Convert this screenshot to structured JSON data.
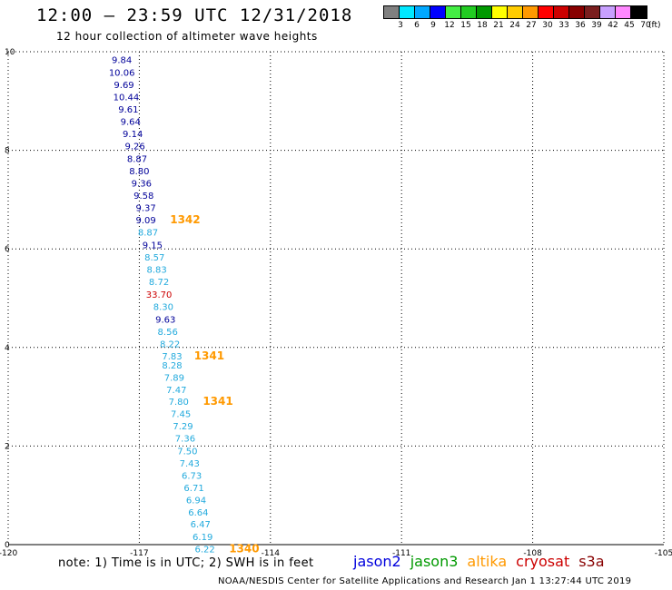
{
  "header": {
    "title": "12:00 – 23:59 UTC 12/31/2018",
    "subtitle": "12 hour collection of altimeter wave heights"
  },
  "colorbar": {
    "colors": [
      "#808080",
      "#00e8ff",
      "#00a8ff",
      "#0000ff",
      "#44ee44",
      "#22cc22",
      "#009900",
      "#ffff00",
      "#ffcc00",
      "#ff9900",
      "#ff0000",
      "#cc0000",
      "#880000",
      "#7a1e1e",
      "#c8a0ff",
      "#ff88ff",
      "#000000"
    ],
    "labels": [
      "3",
      "6",
      "9",
      "12",
      "15",
      "18",
      "21",
      "24",
      "27",
      "30",
      "33",
      "36",
      "39",
      "42",
      "45",
      "70"
    ],
    "unit": "(ft)"
  },
  "chart_data": {
    "type": "scatter",
    "xlim": [
      -120,
      -105
    ],
    "ylim": [
      0,
      10
    ],
    "x_ticks": [
      "-120",
      "-117",
      "-114",
      "-111",
      "-108",
      "-105"
    ],
    "y_ticks": [
      "0",
      "2",
      "4",
      "6",
      "8",
      "10"
    ],
    "grid": true,
    "labels": [
      {
        "x": -117.4,
        "y": 9.84,
        "text": "9.84",
        "color": "#000099"
      },
      {
        "x": -117.4,
        "y": 9.59,
        "text": "10.06",
        "color": "#000099"
      },
      {
        "x": -117.35,
        "y": 9.34,
        "text": "9.69",
        "color": "#000099"
      },
      {
        "x": -117.3,
        "y": 9.09,
        "text": "10.44",
        "color": "#000099"
      },
      {
        "x": -117.25,
        "y": 8.84,
        "text": "9.61",
        "color": "#000099"
      },
      {
        "x": -117.2,
        "y": 8.59,
        "text": "9.64",
        "color": "#000099"
      },
      {
        "x": -117.15,
        "y": 8.34,
        "text": "9.14",
        "color": "#000099"
      },
      {
        "x": -117.1,
        "y": 8.09,
        "text": "9.26",
        "color": "#000099"
      },
      {
        "x": -117.05,
        "y": 7.84,
        "text": "8.87",
        "color": "#000099"
      },
      {
        "x": -117.0,
        "y": 7.59,
        "text": "8.80",
        "color": "#000099"
      },
      {
        "x": -116.95,
        "y": 7.34,
        "text": "9.36",
        "color": "#000099"
      },
      {
        "x": -116.9,
        "y": 7.09,
        "text": "9.58",
        "color": "#000099"
      },
      {
        "x": -116.85,
        "y": 6.84,
        "text": "9.37",
        "color": "#000099"
      },
      {
        "x": -116.85,
        "y": 6.59,
        "text": "9.09",
        "color": "#000099"
      },
      {
        "x": -115.95,
        "y": 6.59,
        "text": "1342",
        "color": "#ff9900",
        "bold": true
      },
      {
        "x": -116.8,
        "y": 6.34,
        "text": "8.87",
        "color": "#22aadd"
      },
      {
        "x": -116.7,
        "y": 6.09,
        "text": "9.15",
        "color": "#000099"
      },
      {
        "x": -116.65,
        "y": 5.84,
        "text": "8.57",
        "color": "#22aadd"
      },
      {
        "x": -116.6,
        "y": 5.59,
        "text": "8.83",
        "color": "#22aadd"
      },
      {
        "x": -116.55,
        "y": 5.34,
        "text": "8.72",
        "color": "#22aadd"
      },
      {
        "x": -116.55,
        "y": 5.08,
        "text": "33.70",
        "color": "#cc0000"
      },
      {
        "x": -116.45,
        "y": 4.83,
        "text": "8.30",
        "color": "#22aadd"
      },
      {
        "x": -116.4,
        "y": 4.58,
        "text": "9.63",
        "color": "#000099"
      },
      {
        "x": -116.35,
        "y": 4.33,
        "text": "8.56",
        "color": "#22aadd"
      },
      {
        "x": -116.3,
        "y": 4.08,
        "text": "8.22",
        "color": "#22aadd"
      },
      {
        "x": -116.25,
        "y": 3.83,
        "text": "7.83",
        "color": "#22aadd"
      },
      {
        "x": -115.4,
        "y": 3.83,
        "text": "1341",
        "color": "#ff9900",
        "bold": true
      },
      {
        "x": -116.25,
        "y": 3.65,
        "text": "8.28",
        "color": "#22aadd"
      },
      {
        "x": -116.2,
        "y": 3.4,
        "text": "7.89",
        "color": "#22aadd"
      },
      {
        "x": -116.15,
        "y": 3.15,
        "text": "7.47",
        "color": "#22aadd"
      },
      {
        "x": -116.1,
        "y": 2.91,
        "text": "7.80",
        "color": "#22aadd"
      },
      {
        "x": -115.2,
        "y": 2.91,
        "text": "1341",
        "color": "#ff9900",
        "bold": true
      },
      {
        "x": -116.05,
        "y": 2.66,
        "text": "7.45",
        "color": "#22aadd"
      },
      {
        "x": -116.0,
        "y": 2.41,
        "text": "7.29",
        "color": "#22aadd"
      },
      {
        "x": -115.95,
        "y": 2.16,
        "text": "7.36",
        "color": "#22aadd"
      },
      {
        "x": -115.9,
        "y": 1.91,
        "text": "7.50",
        "color": "#22aadd"
      },
      {
        "x": -115.85,
        "y": 1.66,
        "text": "7.43",
        "color": "#22aadd"
      },
      {
        "x": -115.8,
        "y": 1.41,
        "text": "6.73",
        "color": "#22aadd"
      },
      {
        "x": -115.75,
        "y": 1.16,
        "text": "6.71",
        "color": "#22aadd"
      },
      {
        "x": -115.7,
        "y": 0.91,
        "text": "6.94",
        "color": "#22aadd"
      },
      {
        "x": -115.65,
        "y": 0.66,
        "text": "6.64",
        "color": "#22aadd"
      },
      {
        "x": -115.6,
        "y": 0.42,
        "text": "6.47",
        "color": "#22aadd"
      },
      {
        "x": -115.55,
        "y": 0.17,
        "text": "6.19",
        "color": "#22aadd"
      },
      {
        "x": -115.5,
        "y": -0.08,
        "text": "6.22",
        "color": "#22aadd"
      },
      {
        "x": -114.6,
        "y": -0.08,
        "text": "1340",
        "color": "#ff9900",
        "bold": true
      }
    ]
  },
  "note": "note:  1) Time is in UTC;  2) SWH is in feet",
  "legend": [
    {
      "label": "jason2",
      "color": "#0000dd"
    },
    {
      "label": "jason3",
      "color": "#009900"
    },
    {
      "label": "altika",
      "color": "#ff9900"
    },
    {
      "label": "cryosat",
      "color": "#cc0000"
    },
    {
      "label": "s3a",
      "color": "#880000"
    }
  ],
  "footer": "NOAA/NESDIS Center for Satellite Applications and Research   Jan  1 13:27:44 UTC 2019"
}
